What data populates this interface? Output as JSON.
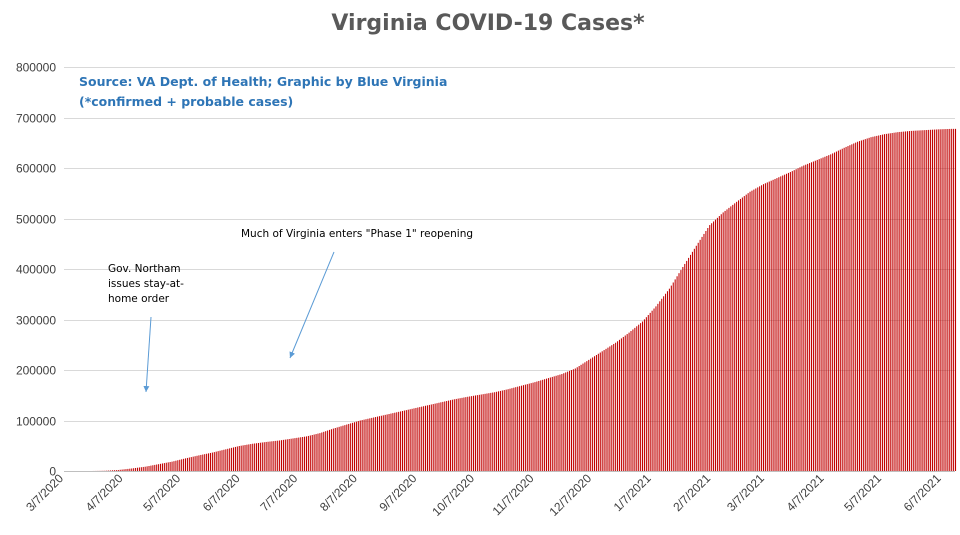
{
  "chart_data": {
    "type": "bar",
    "title": "Virginia COVID-19 Cases*",
    "source_note": "Source: VA Dept. of Health; Graphic by Blue Virginia",
    "source_note_2": "(*confirmed + probable cases)",
    "xlabel": "",
    "ylabel": "",
    "ylim": [
      0,
      800000
    ],
    "y_ticks": [
      "0",
      "100000",
      "200000",
      "300000",
      "400000",
      "500000",
      "600000",
      "700000",
      "800000"
    ],
    "x_tick_labels": [
      "3/7/2020",
      "4/7/2020",
      "5/7/2020",
      "6/7/2020",
      "7/7/2020",
      "8/7/2020",
      "9/7/2020",
      "10/7/2020",
      "11/7/2020",
      "12/7/2020",
      "1/7/2021",
      "2/7/2021",
      "3/7/2021",
      "4/7/2021",
      "5/7/2021",
      "6/7/2021"
    ],
    "bar_color": "#c00000",
    "grid": true,
    "series": [
      {
        "x": [
          "3/7/2020",
          "3/14/2020",
          "3/21/2020",
          "3/28/2020",
          "4/4/2020",
          "4/11/2020",
          "4/18/2020",
          "4/25/2020",
          "5/2/2020",
          "5/9/2020",
          "5/16/2020",
          "5/23/2020",
          "5/30/2020",
          "6/6/2020",
          "6/13/2020",
          "6/20/2020",
          "6/27/2020",
          "7/4/2020",
          "7/11/2020",
          "7/18/2020",
          "7/25/2020",
          "8/1/2020",
          "8/8/2020",
          "8/15/2020",
          "8/22/2020",
          "8/29/2020",
          "9/5/2020",
          "9/12/2020",
          "9/19/2020",
          "9/26/2020",
          "10/3/2020",
          "10/10/2020",
          "10/17/2020",
          "10/24/2020",
          "10/31/2020",
          "11/7/2020",
          "11/14/2020",
          "11/21/2020",
          "11/28/2020",
          "12/5/2020",
          "12/12/2020",
          "12/19/2020",
          "12/26/2020",
          "1/2/2021",
          "1/9/2021",
          "1/16/2021",
          "1/23/2021",
          "1/30/2021",
          "2/6/2021",
          "2/13/2021",
          "2/20/2021",
          "2/27/2021",
          "3/6/2021",
          "3/13/2021",
          "3/20/2021",
          "3/27/2021",
          "4/3/2021",
          "4/10/2021",
          "4/17/2021",
          "4/24/2021",
          "5/1/2021",
          "5/8/2021",
          "5/15/2021",
          "5/22/2021",
          "5/29/2021",
          "6/5/2021",
          "6/12/2021"
        ],
        "values": [
          0,
          0,
          0,
          500,
          2000,
          5000,
          8500,
          13500,
          18500,
          25000,
          31000,
          36500,
          43000,
          49500,
          54000,
          57500,
          60500,
          64500,
          68500,
          75000,
          84000,
          92000,
          100000,
          106000,
          112000,
          118000,
          124000,
          130000,
          136000,
          142000,
          147000,
          151500,
          156000,
          162000,
          169000,
          176000,
          184000,
          192000,
          203000,
          220000,
          237000,
          254000,
          274000,
          296000,
          326000,
          361000,
          404000,
          446000,
          487000,
          512000,
          533000,
          553000,
          568000,
          580000,
          592000,
          605000,
          616000,
          627000,
          640000,
          652000,
          661000,
          667000,
          671000,
          673500,
          675000,
          676500,
          677500
        ]
      }
    ],
    "annotations": [
      {
        "lines": [
          "Gov. Northam",
          "issues stay-at-",
          "home order"
        ],
        "date": "3/30/2020"
      },
      {
        "lines": [
          "Much of Virginia enters \"Phase 1\" reopening"
        ],
        "date": "5/15/2020"
      }
    ]
  }
}
